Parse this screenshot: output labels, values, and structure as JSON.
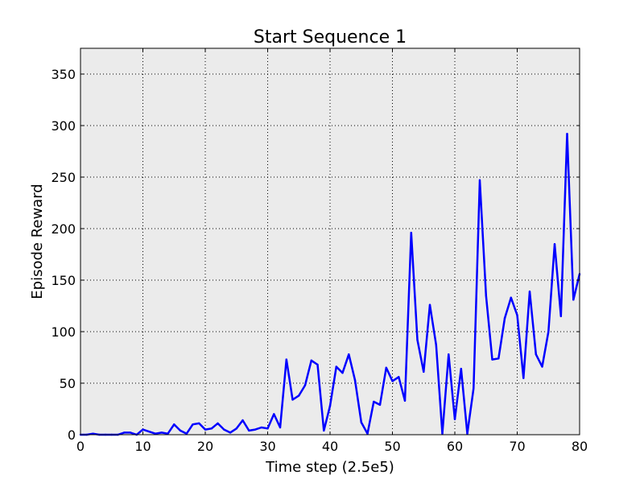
{
  "chart_data": {
    "type": "line",
    "title": "Start Sequence 1",
    "xlabel": "Time step (2.5e5)",
    "ylabel": "Episode Reward",
    "xlim": [
      0,
      80
    ],
    "ylim": [
      0,
      375
    ],
    "xticks": [
      0,
      10,
      20,
      30,
      40,
      50,
      60,
      70,
      80
    ],
    "yticks": [
      0,
      50,
      100,
      150,
      200,
      250,
      300,
      350
    ],
    "grid": true,
    "plot_background": "#ebebeb",
    "series": [
      {
        "color": "#0000ff",
        "x": [
          0,
          1,
          2,
          3,
          4,
          5,
          6,
          7,
          8,
          9,
          10,
          11,
          12,
          13,
          14,
          15,
          16,
          17,
          18,
          19,
          20,
          21,
          22,
          23,
          24,
          25,
          26,
          27,
          28,
          29,
          30,
          31,
          32,
          33,
          34,
          35,
          36,
          37,
          38,
          39,
          40,
          41,
          42,
          43,
          44,
          45,
          46,
          47,
          48,
          49,
          50,
          51,
          52,
          53,
          54,
          55,
          56,
          57,
          58,
          59,
          60,
          61,
          62,
          63,
          64,
          65,
          66,
          67,
          68,
          69,
          70,
          71,
          72,
          73,
          74,
          75,
          76,
          77,
          78,
          79,
          80
        ],
        "values": [
          0,
          0,
          1,
          0,
          0,
          0,
          0,
          2,
          2,
          0,
          5,
          3,
          1,
          2,
          1,
          10,
          4,
          1,
          10,
          11,
          5,
          6,
          11,
          5,
          2,
          6,
          14,
          4,
          5,
          7,
          6,
          20,
          7,
          73,
          34,
          38,
          48,
          72,
          68,
          4,
          28,
          66,
          60,
          78,
          53,
          12,
          1,
          32,
          29,
          65,
          52,
          56,
          33,
          196,
          92,
          61,
          126,
          87,
          1,
          78,
          15,
          64,
          1,
          45,
          247,
          135,
          73,
          74,
          113,
          133,
          116,
          55,
          139,
          78,
          66,
          100,
          185,
          115,
          292,
          131,
          156
        ]
      }
    ]
  }
}
